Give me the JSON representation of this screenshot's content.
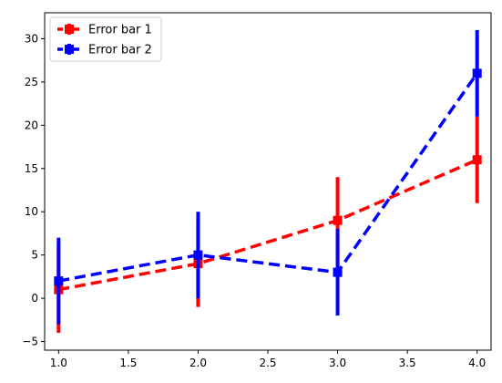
{
  "chart_data": {
    "type": "line",
    "title": "",
    "xlabel": "",
    "ylabel": "",
    "xlim": [
      0.9,
      4.1
    ],
    "ylim": [
      -6,
      33
    ],
    "x_ticks": [
      1.0,
      1.5,
      2.0,
      2.5,
      3.0,
      3.5,
      4.0
    ],
    "x_tick_labels": [
      "1.0",
      "1.5",
      "2.0",
      "2.5",
      "3.0",
      "3.5",
      "4.0"
    ],
    "y_ticks": [
      -5,
      0,
      5,
      10,
      15,
      20,
      25,
      30
    ],
    "y_tick_labels": [
      "−5",
      "0",
      "5",
      "10",
      "15",
      "20",
      "25",
      "30"
    ],
    "grid": false,
    "legend": {
      "position": "top-left"
    },
    "series": [
      {
        "name": "Error bar 1",
        "color": "#ff0000",
        "line_style": "dashed",
        "marker": "square",
        "x": [
          1.0,
          2.0,
          3.0,
          4.0
        ],
        "y": [
          1,
          4,
          9,
          16
        ],
        "yerr": [
          5,
          5,
          5,
          5
        ]
      },
      {
        "name": "Error bar 2",
        "color": "#0000ff",
        "line_style": "dashed",
        "marker": "square",
        "x": [
          1.0,
          2.0,
          3.0,
          4.0
        ],
        "y": [
          2,
          5,
          3,
          26
        ],
        "yerr": [
          5,
          5,
          5,
          5
        ]
      }
    ]
  }
}
